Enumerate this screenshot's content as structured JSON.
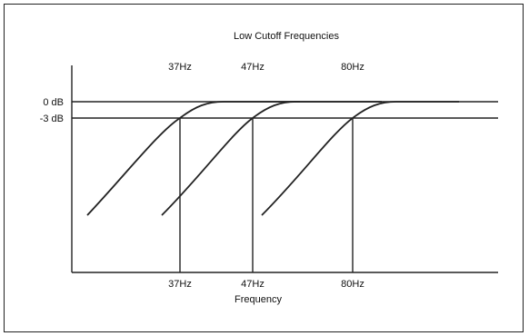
{
  "title": "Low Cutoff Frequencies",
  "x_axis_label": "Frequency",
  "y_levels": [
    {
      "label": "0 dB",
      "value_db": 0
    },
    {
      "label": "-3 dB",
      "value_db": -3
    }
  ],
  "cutoffs": [
    {
      "top_label": "37Hz",
      "bottom_label": "37Hz"
    },
    {
      "top_label": "47Hz",
      "bottom_label": "47Hz"
    },
    {
      "top_label": "80Hz",
      "bottom_label": "80Hz"
    }
  ],
  "colors": {
    "line": "#222222",
    "background": "#ffffff",
    "border": "#222222"
  }
}
